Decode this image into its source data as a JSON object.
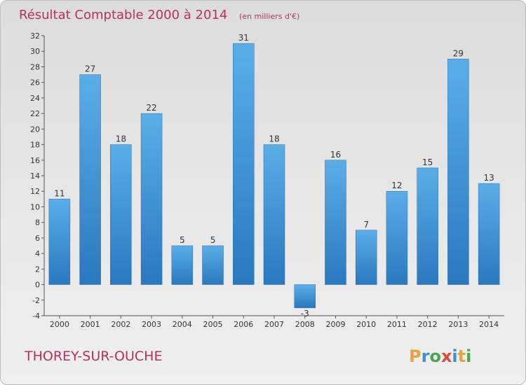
{
  "chart_data": {
    "type": "bar",
    "title": "Résultat Comptable 2000 à 2014",
    "subtitle": "(en milliers d'€)",
    "categories": [
      "2000",
      "2001",
      "2002",
      "2003",
      "2004",
      "2005",
      "2006",
      "2007",
      "2008",
      "2009",
      "2010",
      "2011",
      "2012",
      "2013",
      "2014"
    ],
    "values": [
      11,
      27,
      18,
      22,
      5,
      5,
      31,
      18,
      -3,
      16,
      7,
      12,
      15,
      29,
      13
    ],
    "ylim": [
      -4,
      32
    ],
    "yticks": [
      -4,
      -2,
      0,
      2,
      4,
      6,
      8,
      10,
      12,
      14,
      16,
      18,
      20,
      22,
      24,
      26,
      28,
      30,
      32
    ],
    "xlabel": "",
    "ylabel": "",
    "grid": false,
    "bar_color": "#3f93d6"
  },
  "commune": "THOREY-SUR-OUCHE",
  "brand": {
    "letters": [
      "P",
      "r",
      "o",
      "x",
      "i",
      "t",
      "i"
    ],
    "colors": [
      "#e8a33a",
      "#3d8fd4",
      "#4aa84a",
      "#e04a3a",
      "#3d8fd4",
      "#e8a33a",
      "#4aa84a"
    ]
  }
}
